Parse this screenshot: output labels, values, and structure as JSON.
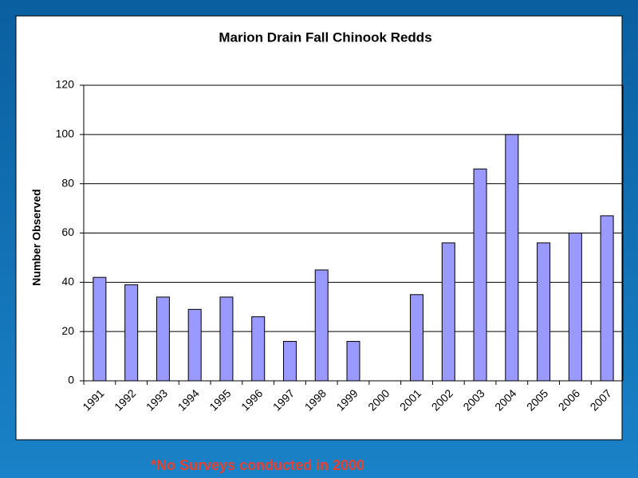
{
  "chart_data": {
    "type": "bar",
    "title": "Marion Drain Fall Chinook Redds",
    "y_label": "Number Observed",
    "annotation": "*No Surveys conducted in 2000",
    "categories": [
      "1991",
      "1992",
      "1993",
      "1994",
      "1995",
      "1996",
      "1997",
      "1998",
      "1999",
      "2000",
      "2001",
      "2002",
      "2003",
      "2004",
      "2005",
      "2006",
      "2007"
    ],
    "values": [
      42,
      39,
      34,
      29,
      34,
      26,
      16,
      45,
      16,
      null,
      35,
      56,
      86,
      100,
      56,
      60,
      67
    ],
    "color": "#9999ff",
    "ylim": [
      0,
      120
    ],
    "yticks": [
      0,
      20,
      40,
      60,
      80,
      100,
      120
    ],
    "grid": true
  }
}
